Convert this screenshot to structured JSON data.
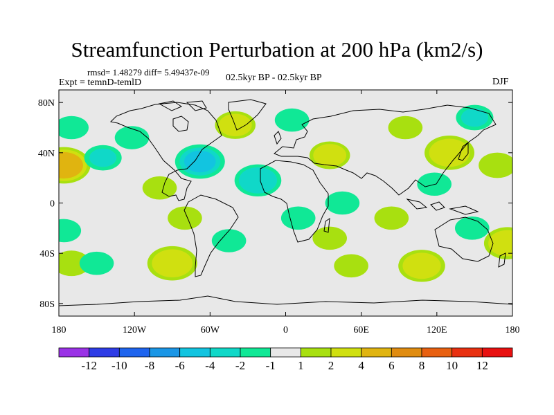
{
  "title": "Streamfunction Perturbation at 200 hPa (km2/s)",
  "stats_line": "rmsd= 1.48279 diff= 5.49437e-09",
  "experiment_line": "Expt = temnD-temlD",
  "period_label": "02.5kyr BP - 02.5kyr BP",
  "season": "DJF",
  "map": {
    "projection": "cylindrical equidistant",
    "lon_range": [
      -180,
      180
    ],
    "lat_range": [
      -90,
      90
    ],
    "background_color": "#e8e8e8",
    "x_ticks": [
      {
        "lon": -180,
        "label": "180"
      },
      {
        "lon": -120,
        "label": "120W"
      },
      {
        "lon": -60,
        "label": "60W"
      },
      {
        "lon": 0,
        "label": "0"
      },
      {
        "lon": 60,
        "label": "60E"
      },
      {
        "lon": 120,
        "label": "120E"
      },
      {
        "lon": 180,
        "label": "180"
      }
    ],
    "y_ticks": [
      {
        "lat": 80,
        "label": "80N"
      },
      {
        "lat": 40,
        "label": "40N"
      },
      {
        "lat": 0,
        "label": "0"
      },
      {
        "lat": -40,
        "label": "40S"
      },
      {
        "lat": -80,
        "label": "80S"
      }
    ]
  },
  "chart_data": {
    "type": "heatmap",
    "units": "km2/s",
    "title": "Streamfunction Perturbation at 200 hPa (km2/s)",
    "contour_levels": [
      -12,
      -10,
      -8,
      -6,
      -4,
      -2,
      -1,
      1,
      2,
      4,
      6,
      8,
      10,
      12
    ],
    "level_labels": [
      "-12",
      "-10",
      "-8",
      "-6",
      "-4",
      "-2",
      "-1",
      "1",
      "2",
      "4",
      "6",
      "8",
      "10",
      "12"
    ],
    "fill_colors": [
      "#9a32e6",
      "#2e3ce6",
      "#1e64ee",
      "#1a96e6",
      "#12c4e0",
      "#10d8c8",
      "#10e896",
      "#e8e8e8",
      "#a8e010",
      "#d0e010",
      "#e0b410",
      "#e08c10",
      "#e86010",
      "#e83010",
      "#e81010"
    ],
    "anomalies": [
      {
        "lon": -176,
        "lat": 30,
        "value": 4.5
      },
      {
        "lon": -170,
        "lat": 60,
        "value": -1.5
      },
      {
        "lon": -176,
        "lat": -22,
        "value": -1.5
      },
      {
        "lon": -170,
        "lat": -48,
        "value": 2
      },
      {
        "lon": -145,
        "lat": 36,
        "value": -2
      },
      {
        "lon": -150,
        "lat": -48,
        "value": -1.5
      },
      {
        "lon": -122,
        "lat": 52,
        "value": -1.5
      },
      {
        "lon": -90,
        "lat": -48,
        "value": 4
      },
      {
        "lon": -100,
        "lat": 12,
        "value": 1.5
      },
      {
        "lon": -80,
        "lat": -12,
        "value": 1.5
      },
      {
        "lon": -68,
        "lat": 33,
        "value": -4
      },
      {
        "lon": -40,
        "lat": 62,
        "value": 2.5
      },
      {
        "lon": -22,
        "lat": 18,
        "value": -3.5
      },
      {
        "lon": -45,
        "lat": -30,
        "value": -1.5
      },
      {
        "lon": 5,
        "lat": 66,
        "value": -1.5
      },
      {
        "lon": 10,
        "lat": -12,
        "value": -1.5
      },
      {
        "lon": 35,
        "lat": 38,
        "value": 2.5
      },
      {
        "lon": 45,
        "lat": 0,
        "value": -1.5
      },
      {
        "lon": 35,
        "lat": -28,
        "value": 1.5
      },
      {
        "lon": 52,
        "lat": -50,
        "value": 1.5
      },
      {
        "lon": 95,
        "lat": 60,
        "value": 1.5
      },
      {
        "lon": 84,
        "lat": -12,
        "value": 1.5
      },
      {
        "lon": 108,
        "lat": -50,
        "value": 3.5
      },
      {
        "lon": 118,
        "lat": 15,
        "value": -1.5
      },
      {
        "lon": 130,
        "lat": 40,
        "value": 4
      },
      {
        "lon": 150,
        "lat": 68,
        "value": -2
      },
      {
        "lon": 148,
        "lat": -20,
        "value": -1.5
      },
      {
        "lon": 168,
        "lat": 30,
        "value": 2
      },
      {
        "lon": 176,
        "lat": -32,
        "value": 3.5
      }
    ]
  }
}
